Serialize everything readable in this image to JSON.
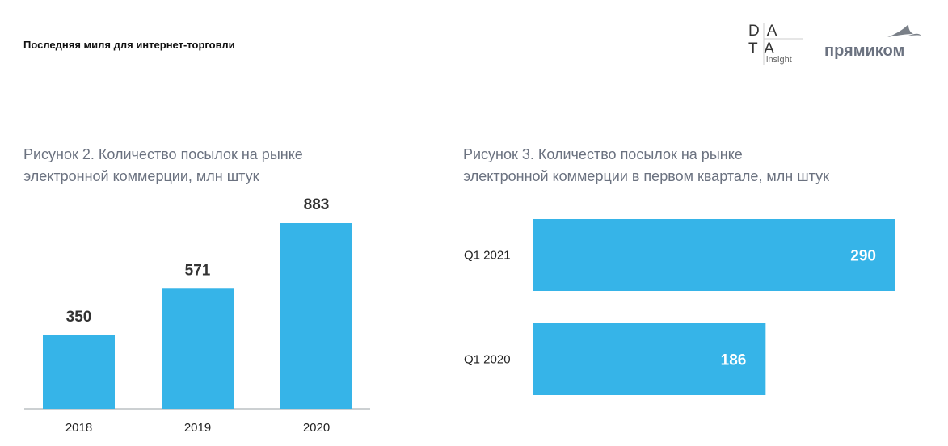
{
  "header": {
    "doc_title": "Последняя миля для интернет-торговли",
    "logo_data_insight": {
      "line1": "DA",
      "line2": "TA",
      "sub": "insight"
    },
    "logo_primikom": {
      "text": "прямиком",
      "icon": "bird-icon"
    }
  },
  "colors": {
    "bar": "#36B4E8",
    "title": "#6b7280",
    "axis": "#9aa0a6"
  },
  "chart_data": [
    {
      "type": "bar",
      "title_lines": [
        "Рисунок 2. Количество посылок на рынке",
        "электронной коммерции, млн штук"
      ],
      "categories": [
        "2018",
        "2019",
        "2020"
      ],
      "values": [
        350,
        571,
        883
      ],
      "ylim": [
        0,
        883
      ],
      "grid": false
    },
    {
      "type": "bar",
      "orientation": "horizontal",
      "title_lines": [
        "Рисунок 3. Количество посылок на рынке",
        "электронной коммерции в первом квартале, млн штук"
      ],
      "categories": [
        "Q1 2021",
        "Q1 2020"
      ],
      "values": [
        290,
        186
      ],
      "xlim": [
        0,
        290
      ],
      "grid": false
    }
  ]
}
